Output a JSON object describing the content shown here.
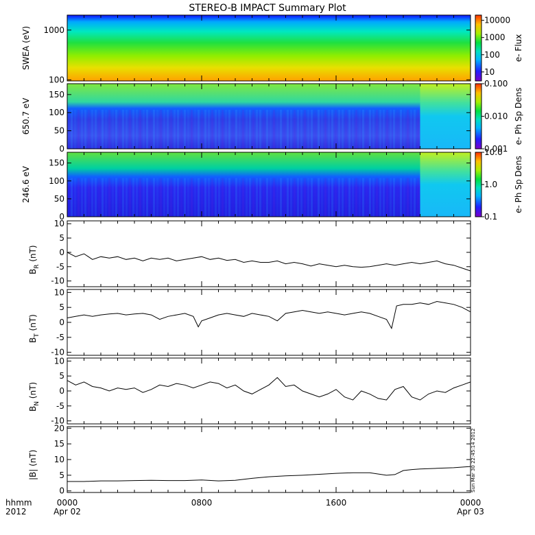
{
  "title": "STEREO-B IMPACT Summary Plot",
  "time_axis": {
    "corner": [
      "hhmm",
      "2012"
    ],
    "ticks": [
      {
        "value": 0,
        "label": "0000",
        "sub": "Apr 02"
      },
      {
        "value": 8,
        "label": "0800",
        "sub": ""
      },
      {
        "value": 16,
        "label": "1600",
        "sub": ""
      },
      {
        "value": 24,
        "label": "0000",
        "sub": "Apr 03"
      }
    ]
  },
  "stamp": "Sun Mar 30 22:45:14 2012",
  "colors": {
    "axis": "#000000",
    "line": "#000000",
    "background": "#ffffff"
  },
  "chart_data": [
    {
      "type": "heatmap",
      "ylabel": "SWEA (eV)",
      "yscale": "log",
      "ylim": [
        95,
        2000
      ],
      "yticks": [
        {
          "v": 100,
          "t": "100"
        },
        {
          "v": 1000,
          "t": "1000"
        }
      ],
      "colorbar": {
        "label": "e- Flux",
        "scale": "log",
        "range": [
          3,
          20000
        ],
        "ticks": [
          {
            "v": 10,
            "t": "10"
          },
          {
            "v": 100,
            "t": "100"
          },
          {
            "v": 1000,
            "t": "1000"
          },
          {
            "v": 10000,
            "t": "10000"
          }
        ]
      }
    },
    {
      "type": "heatmap",
      "ylabel": "650.7 eV",
      "yscale": "linear",
      "ylim": [
        0,
        180
      ],
      "yticks": [
        {
          "v": 0,
          "t": "0"
        },
        {
          "v": 50,
          "t": "50"
        },
        {
          "v": 100,
          "t": "100"
        },
        {
          "v": 150,
          "t": "150"
        }
      ],
      "colorbar": {
        "label": "e- Ph Sp Dens",
        "scale": "log",
        "range": [
          0.001,
          0.1
        ],
        "ticks": [
          {
            "v": 0.001,
            "t": "0.001"
          },
          {
            "v": 0.01,
            "t": "0.010"
          },
          {
            "v": 0.1,
            "t": "0.100"
          }
        ]
      }
    },
    {
      "type": "heatmap",
      "ylabel": "246.6 eV",
      "yscale": "linear",
      "ylim": [
        0,
        180
      ],
      "yticks": [
        {
          "v": 0,
          "t": "0"
        },
        {
          "v": 50,
          "t": "50"
        },
        {
          "v": 100,
          "t": "100"
        },
        {
          "v": 150,
          "t": "150"
        }
      ],
      "colorbar": {
        "label": "e- Ph Sp Dens",
        "scale": "log",
        "range": [
          0.1,
          10
        ],
        "ticks": [
          {
            "v": 0.1,
            "t": "0.1"
          },
          {
            "v": 1,
            "t": "1.0"
          },
          {
            "v": 10,
            "t": "10.0"
          }
        ]
      }
    },
    {
      "type": "line",
      "ylabel": "B",
      "ylabel_sub": "R",
      "ylabel_unit": "(nT)",
      "ylim": [
        -12,
        11
      ],
      "yticks": [
        -10,
        -5,
        0,
        5,
        10
      ],
      "x": [
        0,
        0.5,
        1,
        1.5,
        2,
        2.5,
        3,
        3.5,
        4,
        4.5,
        5,
        5.5,
        6,
        6.5,
        7,
        7.5,
        8,
        8.5,
        9,
        9.5,
        10,
        10.5,
        11,
        11.5,
        12,
        12.5,
        13,
        13.5,
        14,
        14.5,
        15,
        15.5,
        16,
        16.5,
        17,
        17.5,
        18,
        18.5,
        19,
        19.5,
        20,
        20.5,
        21,
        21.5,
        22,
        22.5,
        23,
        23.5,
        24
      ],
      "y": [
        0,
        -1.5,
        -0.5,
        -2.5,
        -1.5,
        -2,
        -1.5,
        -2.5,
        -2,
        -3,
        -2,
        -2.5,
        -2,
        -3,
        -2.5,
        -2,
        -1.5,
        -2.5,
        -2,
        -2.8,
        -2.5,
        -3.5,
        -3,
        -3.5,
        -3.5,
        -3,
        -4,
        -3.5,
        -4,
        -4.8,
        -4,
        -4.5,
        -5,
        -4.5,
        -5,
        -5.2,
        -5,
        -4.5,
        -4,
        -4.5,
        -4,
        -3.5,
        -4,
        -3.5,
        -3,
        -4,
        -4.5,
        -5.5,
        -6.5
      ]
    },
    {
      "type": "line",
      "ylabel": "B",
      "ylabel_sub": "T",
      "ylabel_unit": "(nT)",
      "ylim": [
        -11,
        11
      ],
      "yticks": [
        -10,
        -5,
        0,
        5,
        10
      ],
      "x": [
        0,
        0.5,
        1,
        1.5,
        2,
        2.5,
        3,
        3.5,
        4,
        4.5,
        5,
        5.5,
        6,
        6.5,
        7,
        7.5,
        7.8,
        8,
        8.5,
        9,
        9.5,
        10,
        10.5,
        11,
        11.5,
        12,
        12.5,
        13,
        13.5,
        14,
        14.5,
        15,
        15.5,
        16,
        16.5,
        17,
        17.5,
        18,
        18.5,
        19,
        19.3,
        19.6,
        20,
        20.5,
        21,
        21.5,
        22,
        22.5,
        23,
        23.5,
        24
      ],
      "y": [
        1.5,
        2,
        2.5,
        2,
        2.5,
        2.8,
        3,
        2.5,
        2.8,
        3,
        2.5,
        1,
        2,
        2.5,
        3,
        2,
        -1.5,
        0.5,
        1.5,
        2.5,
        3,
        2.5,
        2,
        3,
        2.5,
        2,
        0.5,
        3,
        3.5,
        4,
        3.5,
        3,
        3.5,
        3,
        2.5,
        3,
        3.5,
        3,
        2,
        1,
        -2,
        5.5,
        6,
        6,
        6.5,
        6,
        7,
        6.5,
        6,
        5,
        3.5
      ]
    },
    {
      "type": "line",
      "ylabel": "B",
      "ylabel_sub": "N",
      "ylabel_unit": "(nT)",
      "ylim": [
        -11,
        11
      ],
      "yticks": [
        -10,
        -5,
        0,
        5,
        10
      ],
      "x": [
        0,
        0.5,
        1,
        1.5,
        2,
        2.5,
        3,
        3.5,
        4,
        4.5,
        5,
        5.5,
        6,
        6.5,
        7,
        7.5,
        8,
        8.5,
        9,
        9.5,
        10,
        10.5,
        11,
        11.5,
        12,
        12.5,
        13,
        13.5,
        14,
        14.5,
        15,
        15.5,
        16,
        16.5,
        17,
        17.5,
        18,
        18.5,
        19,
        19.5,
        20,
        20.5,
        21,
        21.5,
        22,
        22.5,
        23,
        23.5,
        24
      ],
      "y": [
        3.5,
        2,
        3,
        1.5,
        1,
        0,
        1,
        0.5,
        1,
        -0.5,
        0.5,
        2,
        1.5,
        2.5,
        2,
        1,
        2,
        3,
        2.5,
        1,
        2,
        0,
        -1,
        0.5,
        2,
        4.5,
        1.5,
        2,
        0,
        -1,
        -2,
        -1,
        0.5,
        -2,
        -3,
        0,
        -1,
        -2.5,
        -3,
        0.5,
        1.5,
        -2,
        -3,
        -1,
        0,
        -0.5,
        1,
        2,
        3
      ]
    },
    {
      "type": "line",
      "ylabel": "|B|",
      "ylabel_sub": "",
      "ylabel_unit": "(nT)",
      "ylim": [
        -0.5,
        20.5
      ],
      "yticks": [
        0,
        5,
        10,
        15,
        20
      ],
      "x": [
        0,
        1,
        2,
        3,
        4,
        5,
        6,
        7,
        8,
        9,
        10,
        11,
        12,
        13,
        14,
        15,
        16,
        17,
        18,
        19,
        19.5,
        20,
        20.5,
        21,
        22,
        23,
        24
      ],
      "y": [
        3,
        3,
        3.2,
        3.2,
        3.3,
        3.4,
        3.3,
        3.3,
        3.5,
        3.2,
        3.4,
        4,
        4.5,
        4.8,
        5,
        5.3,
        5.6,
        5.8,
        5.8,
        5,
        5.2,
        6.5,
        6.8,
        7,
        7.2,
        7.4,
        7.8
      ]
    }
  ]
}
